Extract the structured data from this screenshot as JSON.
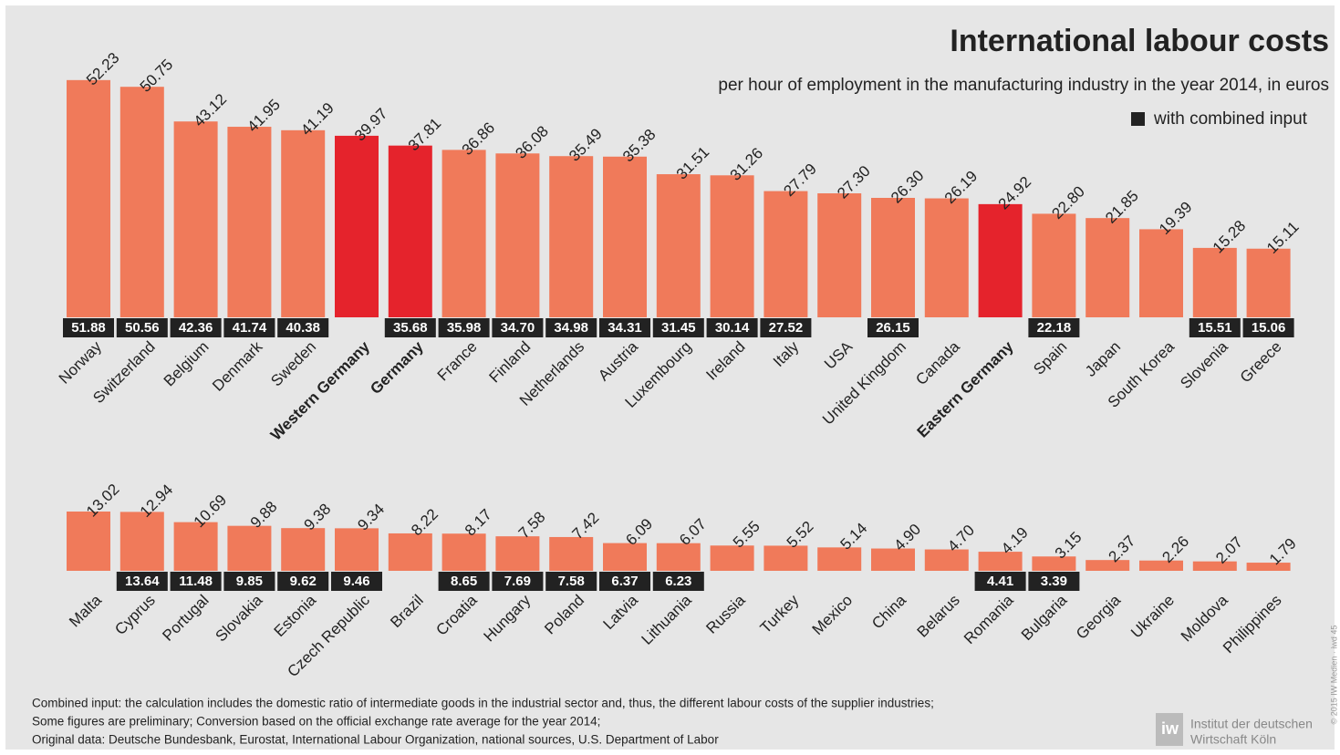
{
  "header": {
    "title": "International labour costs",
    "subtitle": "per hour of employment in the manufacturing industry in the year 2014, in euros"
  },
  "chart_data": [
    {
      "type": "bar",
      "categories": [
        "Norway",
        "Switzerland",
        "Belgium",
        "Denmark",
        "Sweden",
        "Western Germany",
        "Germany",
        "France",
        "Finland",
        "Netherlands",
        "Austria",
        "Luxembourg",
        "Ireland",
        "Italy",
        "USA",
        "United Kingdom",
        "Canada",
        "Eastern Germany",
        "Spain",
        "Japan",
        "South Korea",
        "Slovenia",
        "Greece"
      ],
      "ylim": [
        0,
        53
      ],
      "series": [
        {
          "values": [
            52.23,
            50.75,
            43.12,
            41.95,
            41.19,
            39.97,
            37.81,
            36.86,
            36.08,
            35.49,
            35.38,
            31.51,
            31.26,
            27.79,
            27.3,
            26.3,
            26.19,
            24.92,
            22.8,
            21.85,
            19.39,
            15.28,
            15.11
          ],
          "value_labels": [
            "52.23",
            "50.75",
            "43.12",
            "41.95",
            "41.19",
            "39.97",
            "37.81",
            "36.86",
            "36.08",
            "35.49",
            "35.38",
            "31.51",
            "31.26",
            "27.79",
            "27.30",
            "26.30",
            "26.19",
            "24.92",
            "22.80",
            "21.85",
            "19.39",
            "15.28",
            "15.11"
          ],
          "colors": [
            "#f07a5a",
            "#f07a5a",
            "#f07a5a",
            "#f07a5a",
            "#f07a5a",
            "#e5232c",
            "#e5232c",
            "#f07a5a",
            "#f07a5a",
            "#f07a5a",
            "#f07a5a",
            "#f07a5a",
            "#f07a5a",
            "#f07a5a",
            "#f07a5a",
            "#f07a5a",
            "#f07a5a",
            "#e5232c",
            "#f07a5a",
            "#f07a5a",
            "#f07a5a",
            "#f07a5a",
            "#f07a5a"
          ]
        },
        {
          "name": "with combined input",
          "color": "#222222",
          "values": [
            51.88,
            50.56,
            42.36,
            41.74,
            40.38,
            null,
            35.68,
            35.98,
            34.7,
            34.98,
            34.31,
            31.45,
            30.14,
            27.52,
            null,
            26.15,
            null,
            null,
            22.18,
            null,
            null,
            15.51,
            15.06
          ],
          "value_labels": [
            "51.88",
            "50.56",
            "42.36",
            "41.74",
            "40.38",
            null,
            "35.68",
            "35.98",
            "34.70",
            "34.98",
            "34.31",
            "31.45",
            "30.14",
            "27.52",
            null,
            "26.15",
            null,
            null,
            "22.18",
            null,
            null,
            "15.51",
            "15.06"
          ]
        }
      ]
    },
    {
      "type": "bar",
      "categories": [
        "Malta",
        "Cyprus",
        "Portugal",
        "Slovakia",
        "Estonia",
        "Czech Republic",
        "Brazil",
        "Croatia",
        "Hungary",
        "Poland",
        "Latvia",
        "Lithuania",
        "Russia",
        "Turkey",
        "Mexico",
        "China",
        "Belarus",
        "Romania",
        "Bulgaria",
        "Georgia",
        "Ukraine",
        "Moldova",
        "Philippines"
      ],
      "ylim": [
        0,
        13.3
      ],
      "series": [
        {
          "values": [
            13.02,
            12.94,
            10.69,
            9.88,
            9.38,
            9.34,
            8.22,
            8.17,
            7.58,
            7.42,
            6.09,
            6.07,
            5.55,
            5.52,
            5.14,
            4.9,
            4.7,
            4.19,
            3.15,
            2.37,
            2.26,
            2.07,
            1.79
          ],
          "value_labels": [
            "13.02",
            "12.94",
            "10.69",
            "9.88",
            "9.38",
            "9.34",
            "8.22",
            "8.17",
            "7.58",
            "7.42",
            "6.09",
            "6.07",
            "5.55",
            "5.52",
            "5.14",
            "4.90",
            "4.70",
            "4.19",
            "3.15",
            "2.37",
            "2.26",
            "2.07",
            "1.79"
          ],
          "colors": [
            "#f07a5a",
            "#f07a5a",
            "#f07a5a",
            "#f07a5a",
            "#f07a5a",
            "#f07a5a",
            "#f07a5a",
            "#f07a5a",
            "#f07a5a",
            "#f07a5a",
            "#f07a5a",
            "#f07a5a",
            "#f07a5a",
            "#f07a5a",
            "#f07a5a",
            "#f07a5a",
            "#f07a5a",
            "#f07a5a",
            "#f07a5a",
            "#f07a5a",
            "#f07a5a",
            "#f07a5a",
            "#f07a5a"
          ]
        },
        {
          "color": "#222222",
          "values": [
            null,
            13.64,
            11.48,
            9.85,
            9.62,
            9.46,
            null,
            8.65,
            7.69,
            7.58,
            6.37,
            6.23,
            null,
            null,
            null,
            null,
            null,
            4.41,
            3.39,
            null,
            null,
            null,
            null
          ],
          "value_labels": [
            null,
            "13.64",
            "11.48",
            "9.85",
            "9.62",
            "9.46",
            null,
            "8.65",
            "7.69",
            "7.58",
            "6.37",
            "6.23",
            null,
            null,
            null,
            null,
            null,
            "4.41",
            "3.39",
            null,
            null,
            null,
            null
          ]
        }
      ]
    }
  ],
  "footer": {
    "notes": [
      "Combined input: the calculation includes the domestic ratio of intermediate goods in the industrial sector and, thus, the different labour costs of the supplier industries;",
      "Some figures are preliminary; Conversion based on the official exchange rate average for the year 2014;",
      "Original data: Deutsche Bundesbank, Eurostat, International Labour Organization, national sources, U.S. Department of Labor"
    ],
    "logo": [
      "Institut der deutschen",
      "Wirtschaft Köln"
    ],
    "copyright": "© 2015 IW Medien · iwd 45"
  }
}
